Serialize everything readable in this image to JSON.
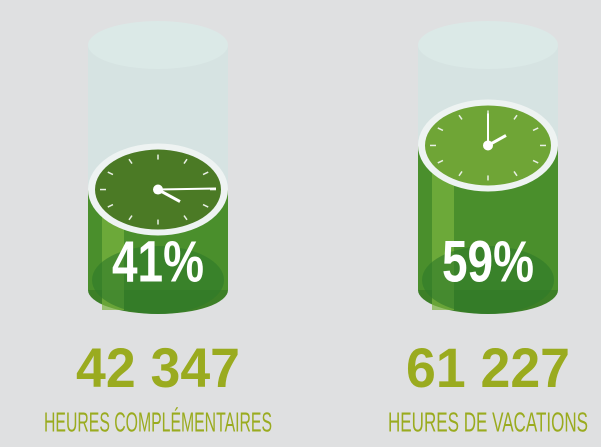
{
  "chart_data": {
    "type": "cylinder",
    "categories": [
      "HEURES COMPLÉMENTAIRES",
      "HEURES DE VACATIONS"
    ],
    "values": [
      41,
      59
    ],
    "value_labels": [
      "41%",
      "59%"
    ],
    "totals": [
      42347,
      61227
    ],
    "total_labels": [
      "42 347",
      "61 227"
    ],
    "ylim": [
      0,
      100
    ],
    "color": "#4a8f2c",
    "label_color": "#9aab1f"
  }
}
